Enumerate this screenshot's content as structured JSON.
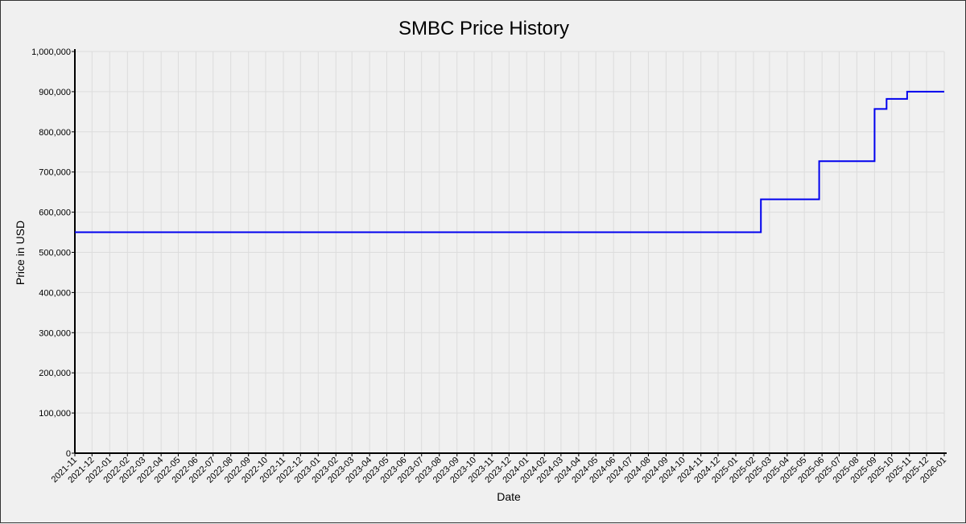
{
  "chart_data": {
    "type": "line",
    "title": "SMBC Price History",
    "xlabel": "Date",
    "ylabel": "Price in USD",
    "x_ticks": [
      "2021-11",
      "2021-12",
      "2022-01",
      "2022-02",
      "2022-03",
      "2022-04",
      "2022-05",
      "2022-06",
      "2022-07",
      "2022-08",
      "2022-09",
      "2022-10",
      "2022-11",
      "2022-12",
      "2023-01",
      "2023-02",
      "2023-03",
      "2023-04",
      "2023-05",
      "2023-06",
      "2023-07",
      "2023-08",
      "2023-09",
      "2023-10",
      "2023-11",
      "2023-12",
      "2024-01",
      "2024-02",
      "2024-03",
      "2024-04",
      "2024-05",
      "2024-06",
      "2024-07",
      "2024-08",
      "2024-09",
      "2024-10",
      "2024-11",
      "2024-12",
      "2025-01",
      "2025-02",
      "2025-03",
      "2025-04",
      "2025-05",
      "2025-06",
      "2025-07",
      "2025-08",
      "2025-09",
      "2025-10",
      "2025-11",
      "2025-12",
      "2026-01"
    ],
    "y_ticks": [
      "0",
      "100,000",
      "200,000",
      "300,000",
      "400,000",
      "500,000",
      "600,000",
      "700,000",
      "800,000",
      "900,000",
      "1,000,000"
    ],
    "ylim": [
      0,
      1000000
    ],
    "xlim": [
      "2021-11-01",
      "2026-01-01"
    ],
    "grid": true,
    "line_color": "#0000ee",
    "step": true,
    "series": [
      {
        "points": [
          {
            "x": "2021-11-01",
            "y": 550000
          },
          {
            "x": "2025-02-14",
            "y": 632000
          },
          {
            "x": "2025-05-27",
            "y": 727000
          },
          {
            "x": "2025-09-01",
            "y": 857000
          },
          {
            "x": "2025-09-22",
            "y": 882000
          },
          {
            "x": "2025-10-28",
            "y": 900000
          },
          {
            "x": "2026-01-01",
            "y": 900000
          }
        ]
      }
    ]
  }
}
